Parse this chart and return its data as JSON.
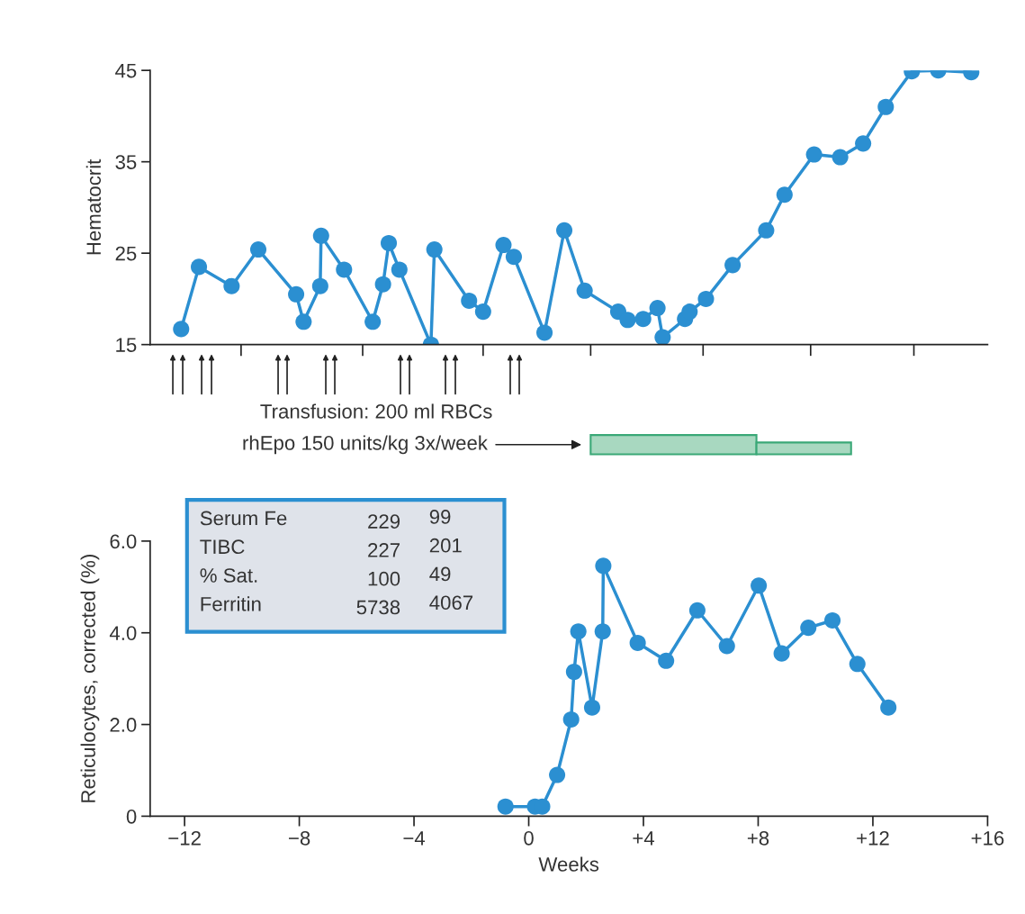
{
  "chart_data": [
    {
      "type": "line",
      "ylabel": "Hematocrit",
      "marker": "circle",
      "tick_labels": "y",
      "x": [
        -12.12,
        -11.5,
        -10.36,
        -9.43,
        -8.11,
        -7.85,
        -7.27,
        -7.24,
        -6.44,
        -5.44,
        -5.08,
        -4.88,
        -4.51,
        -3.41,
        -3.29,
        -2.08,
        -1.59,
        -0.88,
        -0.52,
        0.55,
        1.24,
        1.95,
        3.12,
        3.45,
        3.99,
        4.49,
        4.67,
        5.45,
        5.61,
        6.18,
        7.11,
        8.28,
        8.92,
        9.95,
        10.86,
        11.66,
        12.45,
        13.36,
        14.28,
        15.43
      ],
      "series": [
        {
          "color": "#2b8fd1",
          "values": [
            16.7,
            23.5,
            21.4,
            25.4,
            20.5,
            17.5,
            21.4,
            26.9,
            23.2,
            17.5,
            21.6,
            26.1,
            23.2,
            15.0,
            25.4,
            19.8,
            18.6,
            25.9,
            24.6,
            16.3,
            27.5,
            20.9,
            18.6,
            17.7,
            17.8,
            19.0,
            15.8,
            17.8,
            18.6,
            20.0,
            23.7,
            27.5,
            31.4,
            35.8,
            35.5,
            37.0,
            41.0,
            44.9,
            45.0,
            44.8
          ]
        }
      ],
      "xlim": [
        -13.2,
        16
      ],
      "xticks": [
        {
          "value": -10.03,
          "label": null
        },
        {
          "value": -5.79,
          "label": null
        },
        {
          "value": -1.59,
          "label": null
        },
        {
          "value": 2.16,
          "label": null
        },
        {
          "value": 6.08,
          "label": null
        },
        {
          "value": 9.83,
          "label": null
        },
        {
          "value": 13.43,
          "label": null
        }
      ],
      "ylim": [
        15,
        45
      ],
      "yticks": [
        15,
        25,
        35,
        45
      ],
      "annotations": [
        "Transfusion: 200 ml RBCs",
        "rhEpo 150 units/kg 3x/week"
      ]
    },
    {
      "type": "line",
      "ylabel": "Reticulocytes, corrected (%)",
      "xlabel": "Weeks",
      "marker": "circle",
      "x": [
        -0.81,
        0.22,
        0.47,
        0.99,
        1.48,
        1.58,
        1.73,
        2.21,
        2.58,
        2.6,
        3.8,
        4.79,
        5.88,
        6.91,
        8.02,
        8.82,
        9.75,
        10.59,
        11.46,
        12.54
      ],
      "series": [
        {
          "color": "#2b8fd1",
          "values": [
            0.21,
            0.21,
            0.21,
            0.9,
            2.11,
            3.15,
            4.03,
            2.37,
            4.03,
            5.46,
            3.78,
            3.39,
            4.49,
            3.71,
            5.03,
            3.55,
            4.11,
            4.27,
            3.32,
            2.37
          ]
        }
      ],
      "xlim": [
        -13.2,
        16
      ],
      "xticks": [
        {
          "value": -12,
          "label": "−12"
        },
        {
          "value": -8,
          "label": "−8"
        },
        {
          "value": -4,
          "label": "−4"
        },
        0,
        {
          "value": 4,
          "label": "+4"
        },
        {
          "value": 8,
          "label": "+8"
        },
        {
          "value": 12,
          "label": "+12"
        },
        {
          "value": 16,
          "label": "+16"
        }
      ],
      "ylim": [
        0,
        6.0
      ],
      "yticks": [
        0,
        {
          "value": 2,
          "label": "2.0"
        },
        {
          "value": 4,
          "label": "4.0"
        },
        {
          "value": 6,
          "label": "6.0"
        }
      ],
      "annotations": [
        "Serum Fe\t229\t99",
        "TIBC\t227\t201",
        "% Sat.\t100\t49",
        "Ferritin\t5738\t4067"
      ]
    }
  ]
}
